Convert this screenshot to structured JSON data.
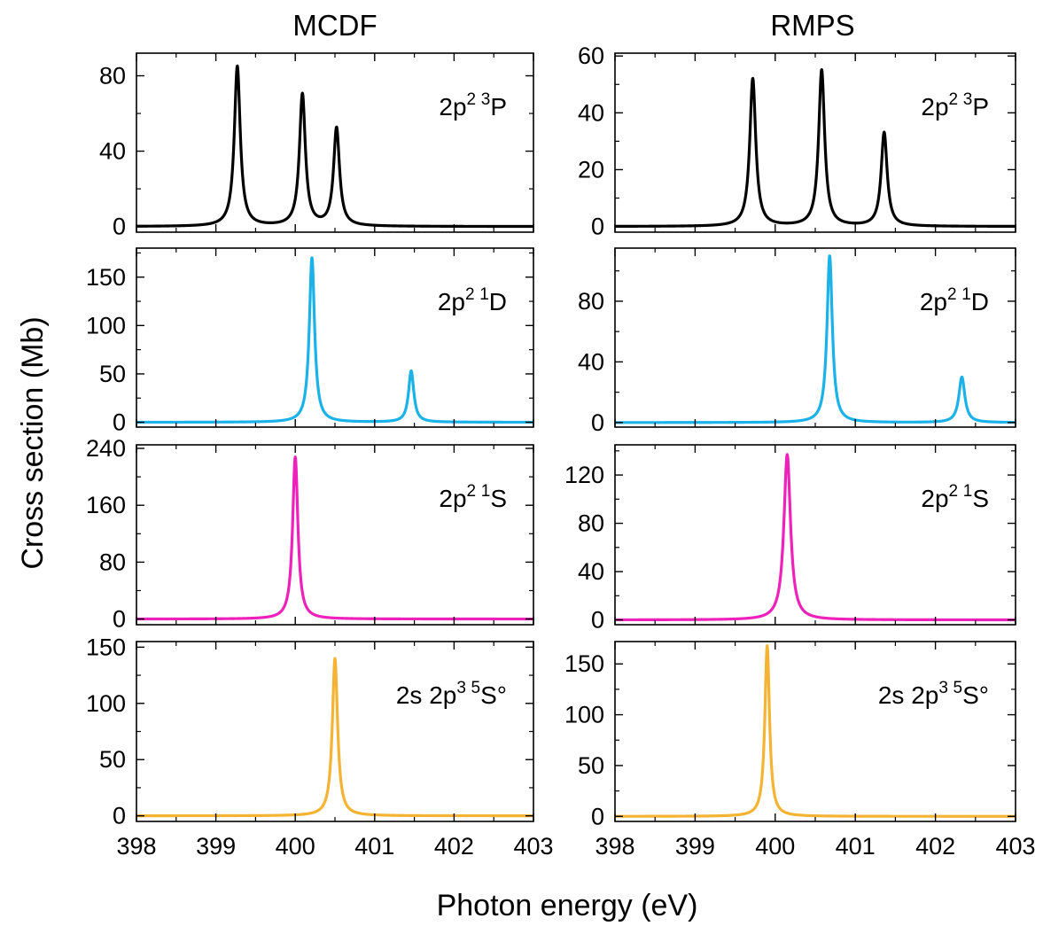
{
  "figure": {
    "column_titles": [
      "MCDF",
      "RMPS"
    ],
    "ylabel": "Cross section (Mb)",
    "xlabel": "Photon energy (eV)"
  },
  "chart_data": [
    {
      "type": "line",
      "column": "MCDF",
      "row": 0,
      "series": [
        {
          "name": "2p² ³P",
          "color": "#000000",
          "peaks": [
            {
              "x": 399.27,
              "y": 85,
              "w": 0.045
            },
            {
              "x": 400.09,
              "y": 70,
              "w": 0.045
            },
            {
              "x": 400.52,
              "y": 52,
              "w": 0.045
            }
          ]
        }
      ],
      "label": {
        "base": "2p",
        "sup1": "2",
        "sup2": "3",
        "term": "P"
      },
      "xlim": [
        398,
        403
      ],
      "ylim": [
        -3,
        92
      ],
      "xticks": [
        398,
        399,
        400,
        401,
        402,
        403
      ],
      "yticks": [
        0,
        40,
        80
      ]
    },
    {
      "type": "line",
      "column": "MCDF",
      "row": 1,
      "series": [
        {
          "name": "2p² ¹D",
          "color": "#1ab2e8",
          "peaks": [
            {
              "x": 400.21,
              "y": 170,
              "w": 0.04
            },
            {
              "x": 401.46,
              "y": 53,
              "w": 0.04
            }
          ]
        }
      ],
      "label": {
        "base": "2p",
        "sup1": "2",
        "sup2": "1",
        "term": "D"
      },
      "xlim": [
        398,
        403
      ],
      "ylim": [
        -5,
        180
      ],
      "xticks": [
        398,
        399,
        400,
        401,
        402,
        403
      ],
      "yticks": [
        0,
        50,
        100,
        150
      ]
    },
    {
      "type": "line",
      "column": "MCDF",
      "row": 2,
      "series": [
        {
          "name": "2p² ¹S",
          "color": "#ee22bb",
          "peaks": [
            {
              "x": 400.0,
              "y": 228,
              "w": 0.04
            }
          ]
        }
      ],
      "label": {
        "base": "2p",
        "sup1": "2",
        "sup2": "1",
        "term": "S"
      },
      "xlim": [
        398,
        403
      ],
      "ylim": [
        -8,
        245
      ],
      "xticks": [
        398,
        399,
        400,
        401,
        402,
        403
      ],
      "yticks": [
        0,
        80,
        160,
        240
      ]
    },
    {
      "type": "line",
      "column": "MCDF",
      "row": 3,
      "series": [
        {
          "name": "2s 2p³ ⁵S°",
          "color": "#f5b333",
          "peaks": [
            {
              "x": 400.5,
              "y": 140,
              "w": 0.04
            }
          ]
        }
      ],
      "label": {
        "base": "2s 2p",
        "sup1": "3",
        "sup2": "5",
        "term": "S°"
      },
      "xlim": [
        398,
        403
      ],
      "ylim": [
        -5,
        155
      ],
      "xticks": [
        398,
        399,
        400,
        401,
        402,
        403
      ],
      "yticks": [
        0,
        50,
        100,
        150
      ]
    },
    {
      "type": "line",
      "column": "RMPS",
      "row": 0,
      "series": [
        {
          "name": "2p² ³P",
          "color": "#000000",
          "peaks": [
            {
              "x": 399.72,
              "y": 52,
              "w": 0.045
            },
            {
              "x": 400.58,
              "y": 55,
              "w": 0.045
            },
            {
              "x": 401.36,
              "y": 33,
              "w": 0.045
            }
          ]
        }
      ],
      "label": {
        "base": "2p",
        "sup1": "2",
        "sup2": "3",
        "term": "P"
      },
      "xlim": [
        398,
        403
      ],
      "ylim": [
        -2,
        61
      ],
      "xticks": [
        398,
        399,
        400,
        401,
        402,
        403
      ],
      "yticks": [
        0,
        20,
        40,
        60
      ]
    },
    {
      "type": "line",
      "column": "RMPS",
      "row": 1,
      "series": [
        {
          "name": "2p² ¹D",
          "color": "#1ab2e8",
          "peaks": [
            {
              "x": 400.68,
              "y": 110,
              "w": 0.04
            },
            {
              "x": 402.33,
              "y": 30,
              "w": 0.045
            }
          ]
        }
      ],
      "label": {
        "base": "2p",
        "sup1": "2",
        "sup2": "1",
        "term": "D"
      },
      "xlim": [
        398,
        403
      ],
      "ylim": [
        -3,
        115
      ],
      "xticks": [
        398,
        399,
        400,
        401,
        402,
        403
      ],
      "yticks": [
        0,
        40,
        80
      ]
    },
    {
      "type": "line",
      "column": "RMPS",
      "row": 2,
      "series": [
        {
          "name": "2p² ¹S",
          "color": "#ee22bb",
          "peaks": [
            {
              "x": 400.15,
              "y": 137,
              "w": 0.05
            }
          ]
        }
      ],
      "label": {
        "base": "2p",
        "sup1": "2",
        "sup2": "1",
        "term": "S"
      },
      "xlim": [
        398,
        403
      ],
      "ylim": [
        -4,
        145
      ],
      "xticks": [
        398,
        399,
        400,
        401,
        402,
        403
      ],
      "yticks": [
        0,
        40,
        80,
        120
      ]
    },
    {
      "type": "line",
      "column": "RMPS",
      "row": 3,
      "series": [
        {
          "name": "2s 2p³ ⁵S°",
          "color": "#f5b333",
          "peaks": [
            {
              "x": 399.9,
              "y": 168,
              "w": 0.035
            }
          ]
        }
      ],
      "label": {
        "base": "2s 2p",
        "sup1": "3",
        "sup2": "5",
        "term": "S°"
      },
      "xlim": [
        398,
        403
      ],
      "ylim": [
        -5,
        172
      ],
      "xticks": [
        398,
        399,
        400,
        401,
        402,
        403
      ],
      "yticks": [
        0,
        50,
        100,
        150
      ]
    }
  ]
}
